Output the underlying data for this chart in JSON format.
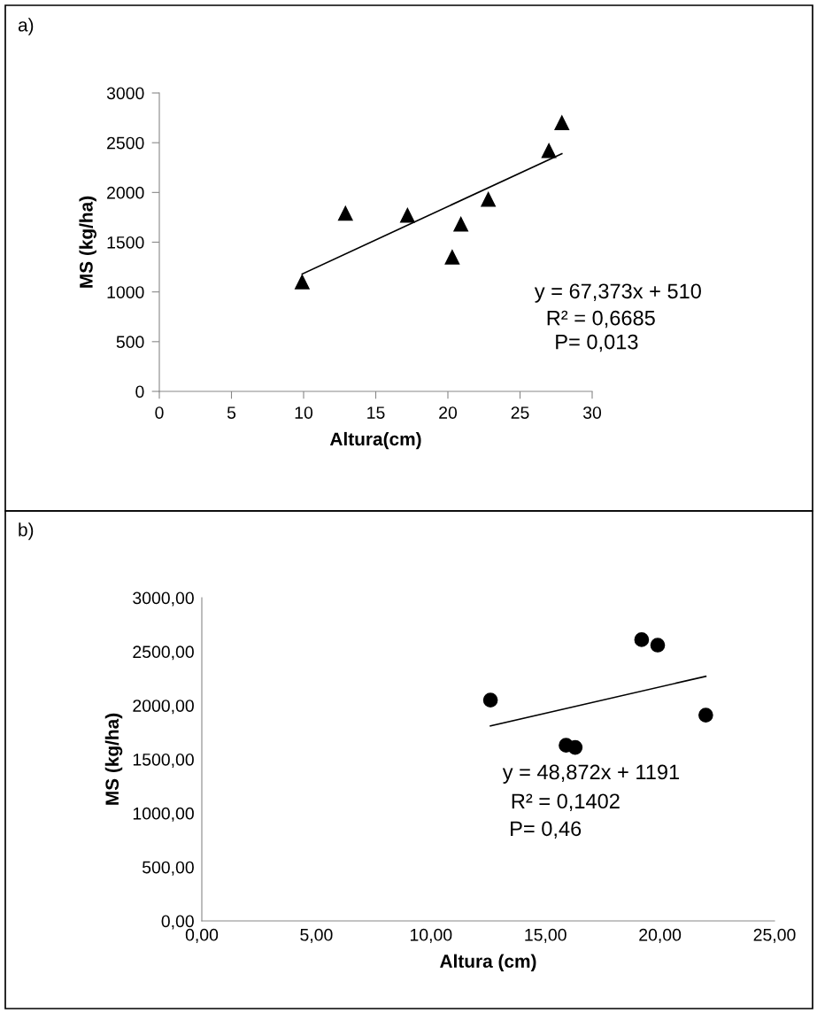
{
  "chart_data": [
    {
      "type": "scatter",
      "title": "a)",
      "xlabel": "Altura(cm)",
      "ylabel": "MS (kg/ha)",
      "xlim": [
        0,
        30
      ],
      "xticks": [
        0,
        5,
        10,
        15,
        20,
        25,
        30
      ],
      "ylim": [
        0,
        3000
      ],
      "yticks": [
        0,
        500,
        1000,
        1500,
        2000,
        2500,
        3000
      ],
      "grid": false,
      "legend": false,
      "series": [
        {
          "color": "#000000",
          "marker": "triangle",
          "x": [
            9.9,
            12.9,
            17.2,
            20.3,
            20.9,
            22.8,
            27.0,
            27.9
          ],
          "values": [
            1100,
            1790,
            1770,
            1350,
            1680,
            1930,
            2420,
            2700
          ]
        },
        {
          "type": "line",
          "color": "#000000",
          "x": [
            9.9,
            27.9
          ],
          "values": [
            1180,
            2390
          ]
        }
      ],
      "annotations": [
        "y = 67,373x + 510",
        "R² = 0,6685",
        "P= 0,013"
      ]
    },
    {
      "type": "scatter",
      "title": "b)",
      "xlabel": "Altura (cm)",
      "ylabel": "MS (kg/ha)",
      "xlim": [
        0,
        25
      ],
      "xticks": [
        {
          "value": 0,
          "label": "0,00"
        },
        {
          "value": 5,
          "label": "5,00"
        },
        {
          "value": 10,
          "label": "10,00"
        },
        {
          "value": 15,
          "label": "15,00"
        },
        {
          "value": 20,
          "label": "20,00"
        },
        {
          "value": 25,
          "label": "25,00"
        }
      ],
      "ylim": [
        0,
        3000
      ],
      "yticks": [
        {
          "value": 0,
          "label": "0,00"
        },
        {
          "value": 500,
          "label": "500,00"
        },
        {
          "value": 1000,
          "label": "1000,00"
        },
        {
          "value": 1500,
          "label": "1500,00"
        },
        {
          "value": 2000,
          "label": "2000,00"
        },
        {
          "value": 2500,
          "label": "2500,00"
        },
        {
          "value": 3000,
          "label": "3000,00"
        }
      ],
      "grid": false,
      "legend": false,
      "series": [
        {
          "color": "#000000",
          "marker": "circle",
          "x": [
            12.6,
            15.9,
            16.3,
            19.2,
            19.9,
            22.0
          ],
          "values": [
            2050,
            1630,
            1610,
            2610,
            2560,
            1910
          ]
        },
        {
          "type": "line",
          "color": "#000000",
          "x": [
            12.6,
            22.0
          ],
          "values": [
            1810,
            2270
          ]
        }
      ],
      "annotations": [
        "y = 48,872x + 1191",
        "R² = 0,1402",
        "P= 0,46"
      ]
    }
  ]
}
